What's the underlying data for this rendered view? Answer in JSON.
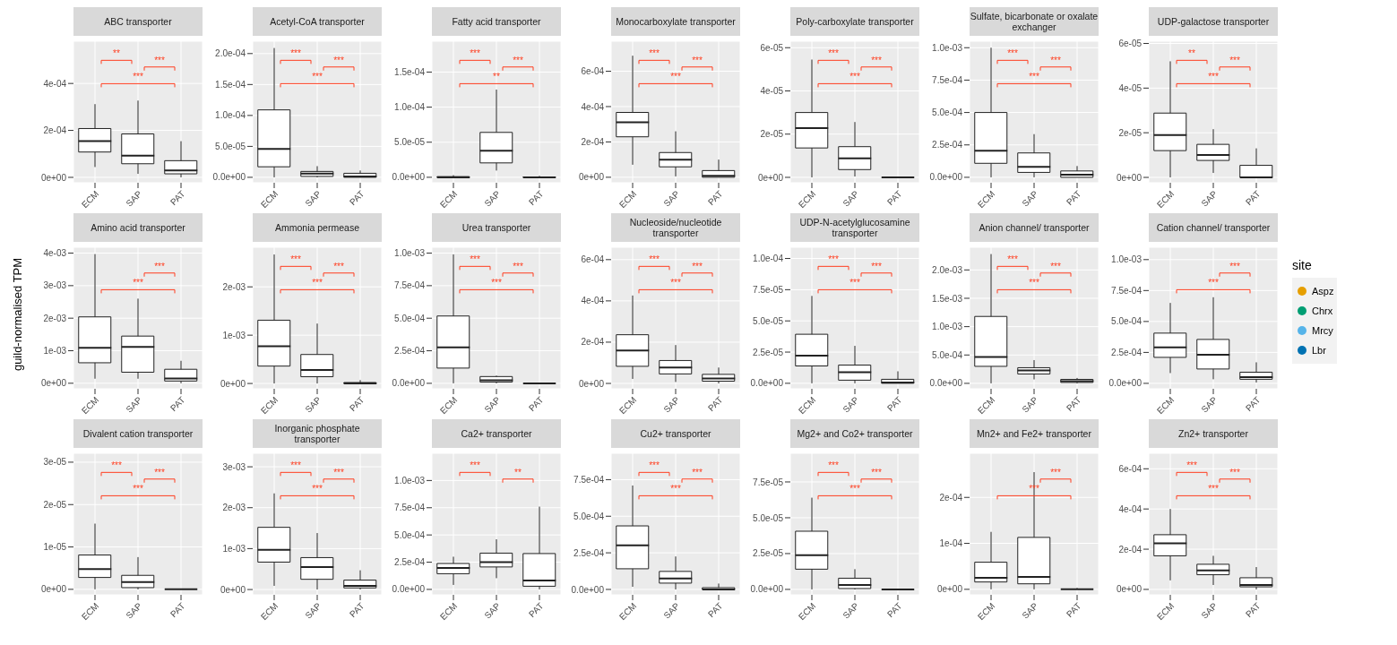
{
  "chart_data": [
    {
      "type": "box",
      "title": "ABC transporter",
      "categories": [
        "ECM",
        "SAP",
        "PAT"
      ],
      "boxes": [
        {
          "low": 4.4e-05,
          "q1": 0.000108,
          "median": 0.000154,
          "q3": 0.000208,
          "high": 0.000312
        },
        {
          "low": 1.5e-05,
          "q1": 5.8e-05,
          "median": 9.2e-05,
          "q3": 0.000185,
          "high": 0.000327
        },
        {
          "low": 0,
          "q1": 1.5e-05,
          "median": 2.9e-05,
          "q3": 7.1e-05,
          "high": 0.000154
        }
      ],
      "ylim": [
        -2.3e-05,
        0.00058
      ],
      "yticks": [
        {
          "value": 0,
          "label": "0e+00"
        },
        {
          "value": 0.0002,
          "label": "2e-04"
        },
        {
          "value": 0.0004,
          "label": "4e-04"
        }
      ],
      "grid": true,
      "annotations": [
        "**",
        "***",
        "***"
      ]
    },
    {
      "type": "box",
      "title": "Acetyl-CoA transporter",
      "categories": [
        "ECM",
        "SAP",
        "PAT"
      ],
      "boxes": [
        {
          "low": 0,
          "q1": 1.7e-05,
          "median": 4.6e-05,
          "q3": 0.000109,
          "high": 0.000209
        },
        {
          "low": 0,
          "q1": 1.5e-06,
          "median": 6e-06,
          "q3": 9.5e-06,
          "high": 1.8e-05
        },
        {
          "low": 0,
          "q1": 0,
          "median": 1.5e-06,
          "q3": 6.5e-06,
          "high": 1.1e-05
        }
      ],
      "ylim": [
        -8.8e-06,
        0.00022
      ],
      "yticks": [
        {
          "value": 0,
          "label": "0.0e+00"
        },
        {
          "value": 5e-05,
          "label": "5.0e-05"
        },
        {
          "value": 0.0001,
          "label": "1.0e-04"
        },
        {
          "value": 0.00015,
          "label": "1.5e-04"
        },
        {
          "value": 0.0002,
          "label": "2.0e-04"
        }
      ],
      "grid": true,
      "annotations": [
        "***",
        "***",
        "***"
      ]
    },
    {
      "type": "box",
      "title": "Fatty acid transporter",
      "categories": [
        "ECM",
        "SAP",
        "PAT"
      ],
      "boxes": [
        {
          "low": 0,
          "q1": 0,
          "median": 0,
          "q3": 1e-06,
          "high": 3e-06
        },
        {
          "low": 9.6e-06,
          "q1": 2.05e-05,
          "median": 3.8e-05,
          "q3": 6.4e-05,
          "high": 0.000125
        },
        {
          "low": 0,
          "q1": 0,
          "median": 0,
          "q3": 5e-07,
          "high": 2e-06
        }
      ],
      "ylim": [
        -7.8e-06,
        0.000194
      ],
      "yticks": [
        {
          "value": 0,
          "label": "0.0e+00"
        },
        {
          "value": 5e-05,
          "label": "5.0e-05"
        },
        {
          "value": 0.0001,
          "label": "1.0e-04"
        },
        {
          "value": 0.00015,
          "label": "1.5e-04"
        }
      ],
      "grid": true,
      "annotations": [
        "***",
        "***",
        "**"
      ]
    },
    {
      "type": "box",
      "title": "Monocarboxylate transporter",
      "categories": [
        "ECM",
        "SAP",
        "PAT"
      ],
      "boxes": [
        {
          "low": 7.1e-05,
          "q1": 0.000229,
          "median": 0.000311,
          "q3": 0.000367,
          "high": 0.000688
        },
        {
          "low": 5e-06,
          "q1": 5.9e-05,
          "median": 9.9e-05,
          "q3": 0.00014,
          "high": 0.00026
        },
        {
          "low": 0,
          "q1": 0,
          "median": 8e-06,
          "q3": 3.8e-05,
          "high": 0.0001
        }
      ],
      "ylim": [
        -3.1e-05,
        0.00077
      ],
      "yticks": [
        {
          "value": 0,
          "label": "0e+00"
        },
        {
          "value": 0.0002,
          "label": "2e-04"
        },
        {
          "value": 0.0004,
          "label": "4e-04"
        },
        {
          "value": 0.0006,
          "label": "6e-04"
        }
      ],
      "grid": true,
      "annotations": [
        "***",
        "***",
        "***"
      ]
    },
    {
      "type": "box",
      "title": "Poly-carboxylate transporter",
      "categories": [
        "ECM",
        "SAP",
        "PAT"
      ],
      "boxes": [
        {
          "low": 0,
          "q1": 1.36e-05,
          "median": 2.28e-05,
          "q3": 3e-05,
          "high": 5.45e-05
        },
        {
          "low": 4e-07,
          "q1": 3.6e-06,
          "median": 8.8e-06,
          "q3": 1.42e-05,
          "high": 2.56e-05
        },
        {
          "low": 0,
          "q1": 0,
          "median": 0,
          "q3": 0,
          "high": 0
        }
      ],
      "ylim": [
        -2.5e-06,
        6.3e-05
      ],
      "yticks": [
        {
          "value": 0,
          "label": "0e+00"
        },
        {
          "value": 2e-05,
          "label": "2e-05"
        },
        {
          "value": 4e-05,
          "label": "4e-05"
        },
        {
          "value": 6e-05,
          "label": "6e-05"
        }
      ],
      "grid": true,
      "annotations": [
        "***",
        "***",
        "***"
      ]
    },
    {
      "type": "box",
      "title": "Sulfate, bicarbonate or oxalate exchanger",
      "categories": [
        "ECM",
        "SAP",
        "PAT"
      ],
      "boxes": [
        {
          "low": 0,
          "q1": 0.000108,
          "median": 0.000205,
          "q3": 0.0005,
          "high": 0.001
        },
        {
          "low": 0,
          "q1": 3.8e-05,
          "median": 8e-05,
          "q3": 0.000188,
          "high": 0.000333
        },
        {
          "low": 0,
          "q1": 0,
          "median": 2.1e-05,
          "q3": 4.9e-05,
          "high": 8.7e-05
        }
      ],
      "ylim": [
        -4.2e-05,
        0.00105
      ],
      "yticks": [
        {
          "value": 0,
          "label": "0.0e+00"
        },
        {
          "value": 0.00025,
          "label": "2.5e-04"
        },
        {
          "value": 0.0005,
          "label": "5.0e-04"
        },
        {
          "value": 0.00075,
          "label": "7.5e-04"
        },
        {
          "value": 0.001,
          "label": "1.0e-03"
        }
      ],
      "grid": true,
      "annotations": [
        "***",
        "***",
        "***"
      ]
    },
    {
      "type": "box",
      "title": "UDP-galactose transporter",
      "categories": [
        "ECM",
        "SAP",
        "PAT"
      ],
      "boxes": [
        {
          "low": 0,
          "q1": 1.2e-05,
          "median": 1.9e-05,
          "q3": 2.88e-05,
          "high": 5.2e-05
        },
        {
          "low": 2e-06,
          "q1": 7.6e-06,
          "median": 1e-05,
          "q3": 1.48e-05,
          "high": 2.16e-05
        },
        {
          "low": 0,
          "q1": 0,
          "median": 0,
          "q3": 5.4e-06,
          "high": 1.3e-05
        }
      ],
      "ylim": [
        -2.4e-06,
        6.1e-05
      ],
      "yticks": [
        {
          "value": 0,
          "label": "0e+00"
        },
        {
          "value": 2e-05,
          "label": "2e-05"
        },
        {
          "value": 4e-05,
          "label": "4e-05"
        },
        {
          "value": 6e-05,
          "label": "6e-05"
        }
      ],
      "grid": true,
      "annotations": [
        "**",
        "***",
        "***"
      ]
    },
    {
      "type": "box",
      "title": "Amino acid transporter",
      "ylabel": "guild-normalised TPM",
      "categories": [
        "ECM",
        "SAP",
        "PAT"
      ],
      "boxes": [
        {
          "low": 0.00014,
          "q1": 0.00063,
          "median": 0.00109,
          "q3": 0.00204,
          "high": 0.00397
        },
        {
          "low": 0.00014,
          "q1": 0.00034,
          "median": 0.00112,
          "q3": 0.00145,
          "high": 0.0026
        },
        {
          "low": 0,
          "q1": 7e-05,
          "median": 0.00015,
          "q3": 0.00043,
          "high": 0.00069
        }
      ],
      "ylim": [
        -0.00017,
        0.00418
      ],
      "yticks": [
        {
          "value": 0,
          "label": "0e+00"
        },
        {
          "value": 0.001,
          "label": "1e-03"
        },
        {
          "value": 0.002,
          "label": "2e-03"
        },
        {
          "value": 0.003,
          "label": "3e-03"
        },
        {
          "value": 0.004,
          "label": "4e-03"
        }
      ],
      "grid": true,
      "annotations": [
        null,
        "***",
        "***"
      ]
    },
    {
      "type": "box",
      "title": "Ammonia permease",
      "categories": [
        "ECM",
        "SAP",
        "PAT"
      ],
      "boxes": [
        {
          "low": 0,
          "q1": 0.00036,
          "median": 0.00077,
          "q3": 0.00131,
          "high": 0.00267
        },
        {
          "low": 0,
          "q1": 0.00014,
          "median": 0.00028,
          "q3": 0.0006,
          "high": 0.00124
        },
        {
          "low": 0,
          "q1": 0,
          "median": 0,
          "q3": 2e-05,
          "high": 7e-05
        }
      ],
      "ylim": [
        -0.00011,
        0.00282
      ],
      "yticks": [
        {
          "value": 0,
          "label": "0e+00"
        },
        {
          "value": 0.001,
          "label": "1e-03"
        },
        {
          "value": 0.002,
          "label": "2e-03"
        }
      ],
      "grid": true,
      "annotations": [
        "***",
        "***",
        "***"
      ]
    },
    {
      "type": "box",
      "title": "Urea transporter",
      "categories": [
        "ECM",
        "SAP",
        "PAT"
      ],
      "boxes": [
        {
          "low": 0,
          "q1": 0.000117,
          "median": 0.000276,
          "q3": 0.000517,
          "high": 0.00099
        },
        {
          "low": 0,
          "q1": 1e-05,
          "median": 2.4e-05,
          "q3": 5.2e-05,
          "high": 5.9e-05
        },
        {
          "low": 0,
          "q1": 0,
          "median": 0,
          "q3": 0,
          "high": 5e-06
        }
      ],
      "ylim": [
        -4.2e-05,
        0.001045
      ],
      "yticks": [
        {
          "value": 0,
          "label": "0.0e+00"
        },
        {
          "value": 0.00025,
          "label": "2.5e-04"
        },
        {
          "value": 0.0005,
          "label": "5.0e-04"
        },
        {
          "value": 0.00075,
          "label": "7.5e-04"
        },
        {
          "value": 0.001,
          "label": "1.0e-03"
        }
      ],
      "grid": true,
      "annotations": [
        "***",
        "***",
        "***"
      ]
    },
    {
      "type": "box",
      "title": "Nucleoside/nucleotide transporter",
      "categories": [
        "ECM",
        "SAP",
        "PAT"
      ],
      "boxes": [
        {
          "low": 2.2e-05,
          "q1": 8.3e-05,
          "median": 0.00016,
          "q3": 0.000236,
          "high": 0.000426
        },
        {
          "low": 7e-06,
          "q1": 4.6e-05,
          "median": 7.7e-05,
          "q3": 0.000111,
          "high": 0.000186
        },
        {
          "low": 0,
          "q1": 1.1e-05,
          "median": 2.4e-05,
          "q3": 4.4e-05,
          "high": 7.7e-05
        }
      ],
      "ylim": [
        -2.6e-05,
        0.00066
      ],
      "yticks": [
        {
          "value": 0,
          "label": "0e+00"
        },
        {
          "value": 0.0002,
          "label": "2e-04"
        },
        {
          "value": 0.0004,
          "label": "4e-04"
        },
        {
          "value": 0.0006,
          "label": "6e-04"
        }
      ],
      "grid": true,
      "annotations": [
        "***",
        "***",
        "***"
      ]
    },
    {
      "type": "box",
      "title": "UDP-N-acetylglucosamine transporter",
      "categories": [
        "ECM",
        "SAP",
        "PAT"
      ],
      "boxes": [
        {
          "low": 0,
          "q1": 1.39e-05,
          "median": 2.21e-05,
          "q3": 3.93e-05,
          "high": 7e-05
        },
        {
          "low": 0,
          "q1": 2.5e-06,
          "median": 8.9e-06,
          "q3": 1.46e-05,
          "high": 3e-05
        },
        {
          "low": 0,
          "q1": 0,
          "median": 7e-07,
          "q3": 3.2e-06,
          "high": 9.6e-06
        }
      ],
      "ylim": [
        -4.4e-06,
        0.000109
      ],
      "yticks": [
        {
          "value": 0,
          "label": "0.0e+00"
        },
        {
          "value": 2.5e-05,
          "label": "2.5e-05"
        },
        {
          "value": 5e-05,
          "label": "5.0e-05"
        },
        {
          "value": 7.5e-05,
          "label": "7.5e-05"
        },
        {
          "value": 0.0001,
          "label": "1.0e-04"
        }
      ],
      "grid": true,
      "annotations": [
        "***",
        "***",
        "***"
      ]
    },
    {
      "type": "box",
      "title": "Anion channel/ transporter",
      "categories": [
        "ECM",
        "SAP",
        "PAT"
      ],
      "boxes": [
        {
          "low": 0,
          "q1": 0.0003,
          "median": 0.000465,
          "q3": 0.00118,
          "high": 0.00228
        },
        {
          "low": 7e-05,
          "q1": 0.000165,
          "median": 0.000228,
          "q3": 0.000276,
          "high": 0.00041
        },
        {
          "low": 0,
          "q1": 1.6e-05,
          "median": 4e-05,
          "q3": 7e-05,
          "high": 9.5e-05
        }
      ],
      "ylim": [
        -9.6e-05,
        0.0024
      ],
      "yticks": [
        {
          "value": 0,
          "label": "0.0e+00"
        },
        {
          "value": 0.0005,
          "label": "5.0e-04"
        },
        {
          "value": 0.001,
          "label": "1.0e-03"
        },
        {
          "value": 0.0015,
          "label": "1.5e-03"
        },
        {
          "value": 0.002,
          "label": "2.0e-03"
        }
      ],
      "grid": true,
      "annotations": [
        "***",
        "***",
        "***"
      ]
    },
    {
      "type": "box",
      "title": "Cation channel/ transporter",
      "categories": [
        "ECM",
        "SAP",
        "PAT"
      ],
      "boxes": [
        {
          "low": 8.3e-05,
          "q1": 0.00021,
          "median": 0.00029,
          "q3": 0.000406,
          "high": 0.00065
        },
        {
          "low": 3.3e-05,
          "q1": 0.000116,
          "median": 0.000232,
          "q3": 0.000355,
          "high": 0.000696
        },
        {
          "low": 7e-06,
          "q1": 3.3e-05,
          "median": 5e-05,
          "q3": 9e-05,
          "high": 0.00017
        }
      ],
      "ylim": [
        -4.4e-05,
        0.0011
      ],
      "yticks": [
        {
          "value": 0,
          "label": "0.0e+00"
        },
        {
          "value": 0.00025,
          "label": "2.5e-04"
        },
        {
          "value": 0.0005,
          "label": "5.0e-04"
        },
        {
          "value": 0.00075,
          "label": "7.5e-04"
        },
        {
          "value": 0.001,
          "label": "1.0e-03"
        }
      ],
      "grid": true,
      "annotations": [
        null,
        "***",
        "***"
      ]
    },
    {
      "type": "box",
      "title": "Divalent cation transporter",
      "categories": [
        "ECM",
        "SAP",
        "PAT"
      ],
      "boxes": [
        {
          "low": 0,
          "q1": 2.8e-06,
          "median": 4.8e-06,
          "q3": 8.1e-06,
          "high": 1.55e-05
        },
        {
          "low": 0,
          "q1": 4e-07,
          "median": 1.7e-06,
          "q3": 3.3e-06,
          "high": 7.6e-06
        },
        {
          "low": 0,
          "q1": 0,
          "median": 0,
          "q3": 0,
          "high": 0
        }
      ],
      "ylim": [
        -1.3e-06,
        3.21e-05
      ],
      "yticks": [
        {
          "value": 0,
          "label": "0e+00"
        },
        {
          "value": 1e-05,
          "label": "1e-05"
        },
        {
          "value": 2e-05,
          "label": "2e-05"
        },
        {
          "value": 3e-05,
          "label": "3e-05"
        }
      ],
      "grid": true,
      "annotations": [
        "***",
        "***",
        "***"
      ]
    },
    {
      "type": "box",
      "title": "Inorganic phosphate transporter",
      "categories": [
        "ECM",
        "SAP",
        "PAT"
      ],
      "boxes": [
        {
          "low": 9e-05,
          "q1": 0.00067,
          "median": 0.00097,
          "q3": 0.00152,
          "high": 0.00235
        },
        {
          "low": 0,
          "q1": 0.00025,
          "median": 0.00055,
          "q3": 0.00078,
          "high": 0.00138
        },
        {
          "low": 0,
          "q1": 4e-05,
          "median": 9e-05,
          "q3": 0.00023,
          "high": 0.00047
        }
      ],
      "ylim": [
        -0.00013,
        0.00333
      ],
      "yticks": [
        {
          "value": 0,
          "label": "0e+00"
        },
        {
          "value": 0.001,
          "label": "1e-03"
        },
        {
          "value": 0.002,
          "label": "2e-03"
        },
        {
          "value": 0.003,
          "label": "3e-03"
        }
      ],
      "grid": true,
      "annotations": [
        "***",
        "***",
        "***"
      ]
    },
    {
      "type": "box",
      "title": "Ca2+ transporter",
      "categories": [
        "ECM",
        "SAP",
        "PAT"
      ],
      "boxes": [
        {
          "low": 4.1e-05,
          "q1": 0.000144,
          "median": 0.000197,
          "q3": 0.000238,
          "high": 0.0003
        },
        {
          "low": 0.000103,
          "q1": 0.000206,
          "median": 0.00025,
          "q3": 0.000333,
          "high": 0.00046
        },
        {
          "low": 0,
          "q1": 2.9e-05,
          "median": 8.2e-05,
          "q3": 0.000329,
          "high": 0.00076
        }
      ],
      "ylim": [
        -5e-05,
        0.00125
      ],
      "yticks": [
        {
          "value": 0,
          "label": "0.0e+00"
        },
        {
          "value": 0.00025,
          "label": "2.5e-04"
        },
        {
          "value": 0.0005,
          "label": "5.0e-04"
        },
        {
          "value": 0.00075,
          "label": "7.5e-04"
        },
        {
          "value": 0.001,
          "label": "1.0e-03"
        }
      ],
      "grid": true,
      "annotations": [
        "***",
        "**",
        null
      ]
    },
    {
      "type": "box",
      "title": "Cu2+ transporter",
      "categories": [
        "ECM",
        "SAP",
        "PAT"
      ],
      "boxes": [
        {
          "low": 1.8e-05,
          "q1": 0.000141,
          "median": 0.000301,
          "q3": 0.000434,
          "high": 0.00071
        },
        {
          "low": 0,
          "q1": 4.3e-05,
          "median": 7.4e-05,
          "q3": 0.000123,
          "high": 0.000225
        },
        {
          "low": 0,
          "q1": 0,
          "median": 0,
          "q3": 1.2e-05,
          "high": 4e-05
        }
      ],
      "ylim": [
        -3.7e-05,
        0.00093
      ],
      "yticks": [
        {
          "value": 0,
          "label": "0.0e+00"
        },
        {
          "value": 0.00025,
          "label": "2.5e-04"
        },
        {
          "value": 0.0005,
          "label": "5.0e-04"
        },
        {
          "value": 0.00075,
          "label": "7.5e-04"
        }
      ],
      "grid": true,
      "annotations": [
        "***",
        "***",
        "***"
      ]
    },
    {
      "type": "box",
      "title": "Mg2+ and Co2+ transporter",
      "categories": [
        "ECM",
        "SAP",
        "PAT"
      ],
      "boxes": [
        {
          "low": 0,
          "q1": 1.41e-05,
          "median": 2.38e-05,
          "q3": 4.06e-05,
          "high": 6.4e-05
        },
        {
          "low": 0,
          "q1": 6e-07,
          "median": 3.1e-06,
          "q3": 7.8e-06,
          "high": 1.41e-05
        },
        {
          "low": 0,
          "q1": 0,
          "median": 0,
          "q3": 0,
          "high": 5e-07
        }
      ],
      "ylim": [
        -3.8e-06,
        9.5e-05
      ],
      "yticks": [
        {
          "value": 0,
          "label": "0.0e+00"
        },
        {
          "value": 2.5e-05,
          "label": "2.5e-05"
        },
        {
          "value": 5e-05,
          "label": "5.0e-05"
        },
        {
          "value": 7.5e-05,
          "label": "7.5e-05"
        }
      ],
      "grid": true,
      "annotations": [
        "***",
        "***",
        "***"
      ]
    },
    {
      "type": "box",
      "title": "Mn2+ and Fe2+ transporter",
      "categories": [
        "ECM",
        "SAP",
        "PAT"
      ],
      "boxes": [
        {
          "low": 0,
          "q1": 1.6e-05,
          "median": 2.5e-05,
          "q3": 5.9e-05,
          "high": 0.000125
        },
        {
          "low": 0,
          "q1": 1.2e-05,
          "median": 2.7e-05,
          "q3": 0.000113,
          "high": 0.000255
        },
        {
          "low": 0,
          "q1": 0,
          "median": 0,
          "q3": 0,
          "high": 3e-06
        }
      ],
      "ylim": [
        -1.2e-05,
        0.000296
      ],
      "yticks": [
        {
          "value": 0,
          "label": "0e+00"
        },
        {
          "value": 0.0001,
          "label": "1e-04"
        },
        {
          "value": 0.0002,
          "label": "2e-04"
        }
      ],
      "grid": true,
      "annotations": [
        null,
        "***",
        "***"
      ]
    },
    {
      "type": "box",
      "title": "Zn2+ transporter",
      "categories": [
        "ECM",
        "SAP",
        "PAT"
      ],
      "boxes": [
        {
          "low": 4.5e-05,
          "q1": 0.000167,
          "median": 0.000229,
          "q3": 0.000272,
          "high": 0.0004
        },
        {
          "low": 2.2e-05,
          "q1": 7.3e-05,
          "median": 9.4e-05,
          "q3": 0.000125,
          "high": 0.000167
        },
        {
          "low": 0,
          "q1": 1.3e-05,
          "median": 2.2e-05,
          "q3": 5.8e-05,
          "high": 0.000111
        }
      ],
      "ylim": [
        -2.7e-05,
        0.000677
      ],
      "yticks": [
        {
          "value": 0,
          "label": "0e+00"
        },
        {
          "value": 0.0002,
          "label": "2e-04"
        },
        {
          "value": 0.0004,
          "label": "4e-04"
        },
        {
          "value": 0.0006,
          "label": "6e-04"
        }
      ],
      "grid": true,
      "annotations": [
        "***",
        "***",
        "***"
      ]
    },
    {
      "type": "other",
      "legend_title": "site",
      "series": [
        {
          "name": "Aspz",
          "color": "#e69f00"
        },
        {
          "name": "Chrx",
          "color": "#009e73"
        },
        {
          "name": "Mrcy",
          "color": "#56b4e9"
        },
        {
          "name": "Lbr",
          "color": "#0072b2"
        }
      ]
    }
  ]
}
